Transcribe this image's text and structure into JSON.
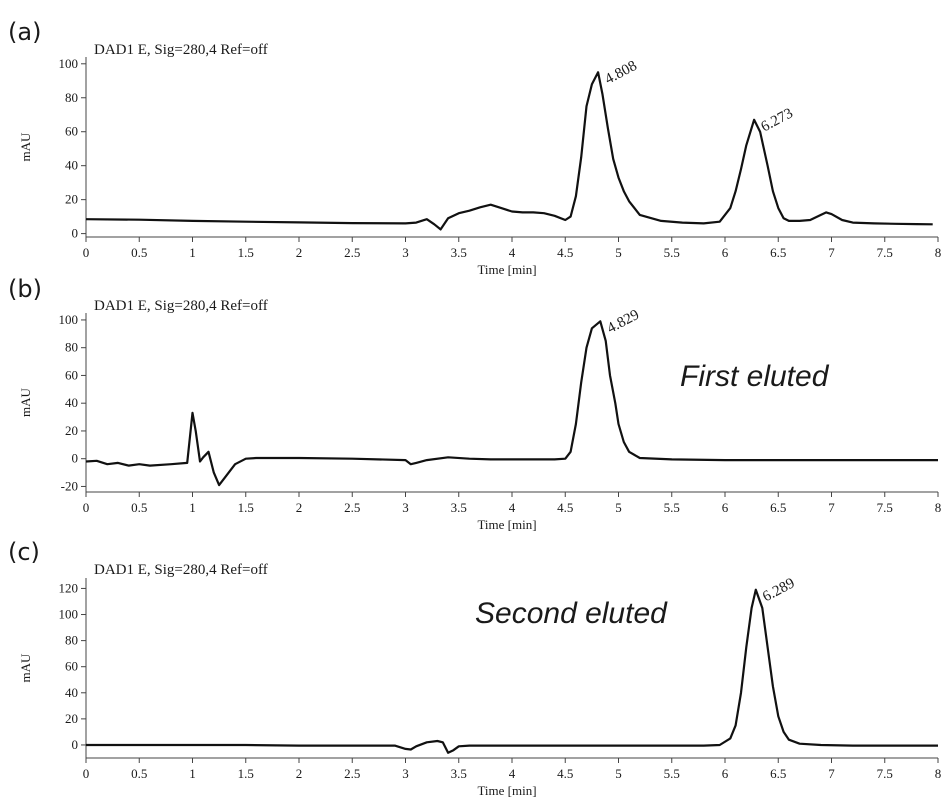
{
  "chart_data": [
    {
      "type": "line",
      "panel_label": "(a)",
      "title": "DAD1 E, Sig=280,4 Ref=off",
      "xlabel": "Time [min]",
      "ylabel": "mAU",
      "xlim": [
        0,
        8
      ],
      "ylim": [
        -2,
        104
      ],
      "xticks": [
        "0",
        "0.5",
        "1",
        "1.5",
        "2",
        "2.5",
        "3",
        "3.5",
        "4",
        "4.5",
        "5",
        "5.5",
        "6",
        "6.5",
        "7",
        "7.5",
        "8"
      ],
      "yticks": [
        "0",
        "20",
        "40",
        "60",
        "80",
        "100"
      ],
      "series": [
        {
          "x": [
            0,
            0.5,
            1,
            1.5,
            2,
            2.5,
            3,
            3.1,
            3.2,
            3.27,
            3.33,
            3.4,
            3.5,
            3.6,
            3.7,
            3.8,
            3.9,
            4.0,
            4.1,
            4.2,
            4.3,
            4.4,
            4.5,
            4.55,
            4.6,
            4.65,
            4.7,
            4.75,
            4.808,
            4.85,
            4.9,
            4.95,
            5.0,
            5.05,
            5.1,
            5.2,
            5.4,
            5.6,
            5.8,
            5.95,
            6.05,
            6.1,
            6.15,
            6.2,
            6.273,
            6.33,
            6.4,
            6.45,
            6.5,
            6.55,
            6.6,
            6.7,
            6.8,
            6.9,
            6.95,
            7.0,
            7.1,
            7.2,
            7.4,
            7.6,
            7.8,
            7.95
          ],
          "values": [
            8.5,
            8.2,
            7.5,
            7,
            6.6,
            6.2,
            6,
            6.5,
            8.5,
            5.5,
            2.5,
            9,
            12,
            13.5,
            15.5,
            17,
            15,
            13,
            12.5,
            12.5,
            12,
            10.5,
            8,
            10,
            22,
            45,
            75,
            88,
            95,
            82,
            62,
            44,
            33,
            25,
            19,
            11,
            7.5,
            6.5,
            6,
            7,
            15,
            25,
            38,
            52,
            67,
            60,
            40,
            25,
            15,
            9,
            7.5,
            7.5,
            8,
            11,
            12.5,
            11.5,
            8,
            6.5,
            6,
            5.8,
            5.6,
            5.5
          ]
        }
      ],
      "annotations": [
        {
          "text": "4.808",
          "x": 4.808,
          "y": 95
        },
        {
          "text": "6.273",
          "x": 6.273,
          "y": 67
        }
      ]
    },
    {
      "type": "line",
      "panel_label": "(b)",
      "title": "DAD1 E, Sig=280,4 Ref=off",
      "xlabel": "Time [min]",
      "ylabel": "mAU",
      "xlim": [
        0,
        8
      ],
      "ylim": [
        -24,
        105
      ],
      "xticks": [
        "0",
        "0.5",
        "1",
        "1.5",
        "2",
        "2.5",
        "3",
        "3.5",
        "4",
        "4.5",
        "5",
        "5.5",
        "6",
        "6.5",
        "7",
        "7.5",
        "8"
      ],
      "yticks": [
        "-20",
        "0",
        "20",
        "40",
        "60",
        "80",
        "100"
      ],
      "annotation_text": "First eluted",
      "series": [
        {
          "x": [
            0,
            0.1,
            0.2,
            0.3,
            0.4,
            0.5,
            0.6,
            0.8,
            0.95,
            1.0,
            1.03,
            1.07,
            1.1,
            1.15,
            1.2,
            1.25,
            1.3,
            1.4,
            1.5,
            1.6,
            2.0,
            2.5,
            3.0,
            3.05,
            3.1,
            3.2,
            3.4,
            3.6,
            3.8,
            4.0,
            4.2,
            4.4,
            4.5,
            4.55,
            4.6,
            4.65,
            4.7,
            4.75,
            4.829,
            4.88,
            4.92,
            4.97,
            5.0,
            5.05,
            5.1,
            5.2,
            5.5,
            6,
            6.5,
            7,
            7.5,
            8
          ],
          "values": [
            -2,
            -1.5,
            -4,
            -3,
            -5,
            -4,
            -5,
            -4,
            -3,
            33,
            20,
            -2,
            1,
            5,
            -10,
            -19,
            -14,
            -4,
            0,
            0.5,
            0.5,
            0,
            -1,
            -4,
            -3,
            -1,
            1,
            0,
            -0.5,
            -0.5,
            -0.5,
            -0.5,
            0,
            5,
            25,
            55,
            80,
            94,
            99,
            85,
            60,
            40,
            25,
            12,
            5,
            0.5,
            -0.5,
            -1,
            -1,
            -1,
            -1,
            -1
          ]
        }
      ],
      "annotations": [
        {
          "text": "4.829",
          "x": 4.829,
          "y": 99
        }
      ]
    },
    {
      "type": "line",
      "panel_label": "(c)",
      "title": "DAD1 E, Sig=280,4 Ref=off",
      "xlabel": "Time [min]",
      "ylabel": "mAU",
      "xlim": [
        0,
        8
      ],
      "ylim": [
        -10,
        128
      ],
      "xticks": [
        "0",
        "0.5",
        "1",
        "1.5",
        "2",
        "2.5",
        "3",
        "3.5",
        "4",
        "4.5",
        "5",
        "5.5",
        "6",
        "6.5",
        "7",
        "7.5",
        "8"
      ],
      "yticks": [
        "0",
        "20",
        "40",
        "60",
        "80",
        "100",
        "120"
      ],
      "annotation_text": "Second eluted",
      "series": [
        {
          "x": [
            0,
            0.5,
            1,
            1.5,
            2,
            2.5,
            2.9,
            3.0,
            3.05,
            3.1,
            3.2,
            3.3,
            3.35,
            3.4,
            3.45,
            3.5,
            3.6,
            3.8,
            4.0,
            4.5,
            5.0,
            5.5,
            5.8,
            5.95,
            6.05,
            6.1,
            6.15,
            6.2,
            6.25,
            6.289,
            6.35,
            6.4,
            6.45,
            6.5,
            6.55,
            6.6,
            6.7,
            6.9,
            7.2,
            7.6,
            8
          ],
          "values": [
            0,
            0,
            0,
            0,
            -0.5,
            -0.5,
            -0.5,
            -3,
            -3.5,
            -1,
            2,
            3,
            2,
            -6,
            -4,
            -1,
            -0.5,
            -0.5,
            -0.5,
            -0.5,
            -0.5,
            -0.5,
            -0.5,
            0,
            5,
            15,
            40,
            75,
            105,
            119,
            105,
            75,
            45,
            22,
            10,
            4,
            1,
            0,
            -0.5,
            -0.5,
            -0.5
          ]
        }
      ],
      "annotations": [
        {
          "text": "6.289",
          "x": 6.289,
          "y": 119
        }
      ]
    }
  ]
}
